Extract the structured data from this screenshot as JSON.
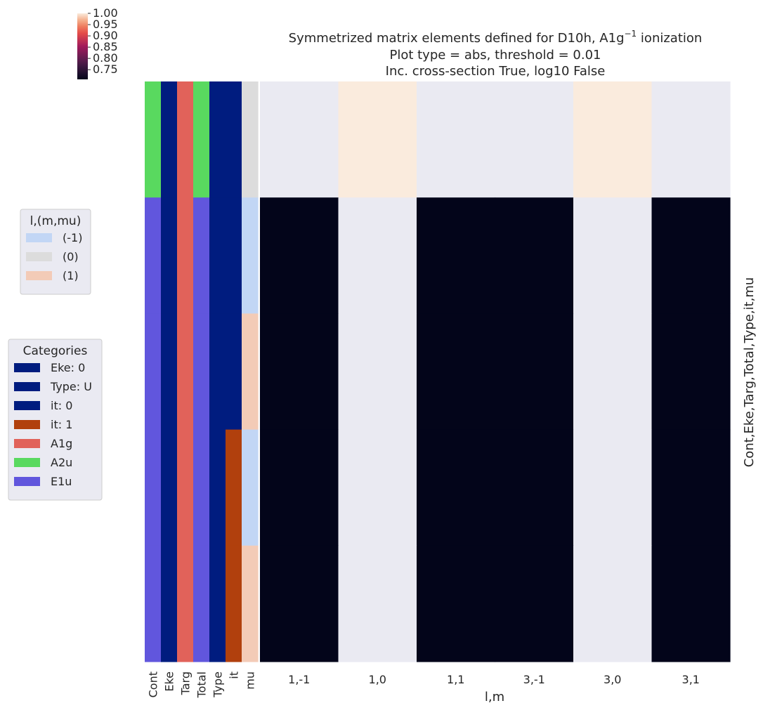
{
  "chart_data": {
    "type": "heatmap",
    "title_lines": [
      "Symmetrized matrix elements defined for D10h, A1g",
      "Plot type = abs, threshold = 0.01",
      "Inc. cross-section True, log10 False"
    ],
    "title_superscript": "−1",
    "title_suffix": " ionization",
    "xlabel": "l,m",
    "ylabel": "Cont,Eke,Targ,Total,Type,it,mu",
    "columns": [
      "1,-1",
      "1,0",
      "1,1",
      "3,-1",
      "3,0",
      "3,1"
    ],
    "column_spans": [
      1,
      1,
      2,
      1,
      1
    ],
    "column_span_starts": [
      "1,-1",
      "1,0",
      "1,1",
      "3,0",
      "3,1"
    ],
    "rows": [
      {
        "Cont": "A2u",
        "Eke": 0,
        "Targ": "A1g",
        "Total": "A2u",
        "Type": "U",
        "it": 0,
        "mu": 0
      },
      {
        "Cont": "E1u",
        "Eke": 0,
        "Targ": "A1g",
        "Total": "E1u",
        "Type": "U",
        "it": 0,
        "mu": -1
      },
      {
        "Cont": "E1u",
        "Eke": 0,
        "Targ": "A1g",
        "Total": "E1u",
        "Type": "U",
        "it": 0,
        "mu": 1
      },
      {
        "Cont": "E1u",
        "Eke": 0,
        "Targ": "A1g",
        "Total": "E1u",
        "Type": "U",
        "it": 1,
        "mu": -1
      },
      {
        "Cont": "E1u",
        "Eke": 0,
        "Targ": "A1g",
        "Total": "E1u",
        "Type": "U",
        "it": 1,
        "mu": 1
      }
    ],
    "values": [
      [
        null,
        1.0,
        null,
        null,
        1.0,
        null
      ],
      [
        0.707,
        null,
        0.707,
        0.707,
        null,
        0.707
      ],
      [
        0.707,
        null,
        0.707,
        0.707,
        null,
        0.707
      ],
      [
        0.707,
        null,
        0.707,
        0.707,
        null,
        0.707
      ],
      [
        0.707,
        null,
        0.707,
        0.707,
        null,
        0.707
      ]
    ],
    "colorbar": {
      "colormap": "rocket",
      "ticks": [
        "1.00",
        "0.95",
        "0.90",
        "0.85",
        "0.80",
        "0.75"
      ],
      "vmin": 0.707,
      "vmax": 1.0
    },
    "row_color_labels": [
      "Cont",
      "Eke",
      "Targ",
      "Total",
      "Type",
      "it",
      "mu"
    ],
    "legend_lm": {
      "title": "l,(m,mu)",
      "entries": [
        {
          "label": "(-1)",
          "color": "#c2d6f5"
        },
        {
          "label": "(0)",
          "color": "#dcdcdc"
        },
        {
          "label": "(1)",
          "color": "#f3cbb7"
        }
      ]
    },
    "legend_categories": {
      "title": "Categories",
      "entries": [
        {
          "label": "Eke: 0",
          "color": "#001c7f"
        },
        {
          "label": "Type: U",
          "color": "#001c7f"
        },
        {
          "label": "it: 0",
          "color": "#001c7f"
        },
        {
          "label": "it: 1",
          "color": "#b1400d"
        },
        {
          "label": "A1g",
          "color": "#e1625a"
        },
        {
          "label": "A2u",
          "color": "#59d95f"
        },
        {
          "label": "E1u",
          "color": "#6156dd"
        }
      ]
    },
    "colors": {
      "nan_cell": "#eaeaf2",
      "high_cell": "#faebdd",
      "low_cell": "#03051a"
    }
  }
}
